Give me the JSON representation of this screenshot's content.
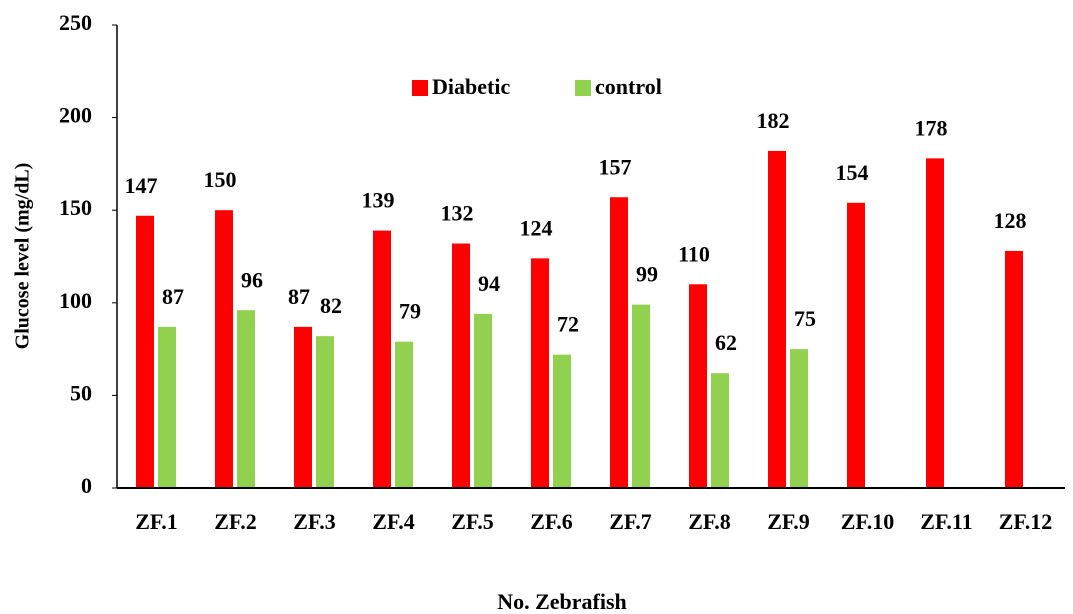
{
  "chart_data": {
    "type": "bar",
    "x_label": "No. Zebrafish",
    "y_label": "Glucose level (mg/dL)",
    "categories": [
      "ZF.1",
      "ZF.2",
      "ZF.3",
      "ZF.4",
      "ZF.5",
      "ZF.6",
      "ZF.7",
      "ZF.8",
      "ZF.9",
      "ZF.10",
      "ZF.11",
      "ZF.12"
    ],
    "series": [
      {
        "name": "Diabetic",
        "color": "#ff0000",
        "values": [
          147,
          150,
          87,
          139,
          132,
          124,
          157,
          110,
          182,
          154,
          178,
          128
        ]
      },
      {
        "name": "control",
        "color": "#92d050",
        "values": [
          87,
          96,
          82,
          79,
          94,
          72,
          99,
          62,
          75,
          null,
          null,
          null
        ]
      }
    ],
    "ylim": [
      0,
      250
    ],
    "yticks": [
      0,
      50,
      100,
      150,
      200,
      250
    ],
    "grid": false,
    "legend": "top"
  }
}
